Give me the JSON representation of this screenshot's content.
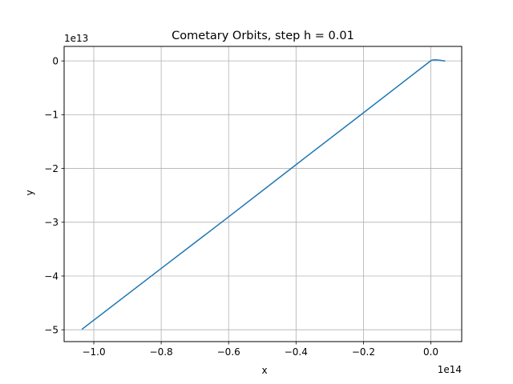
{
  "chart_data": {
    "type": "line",
    "title": "Cometary Orbits, step h = 0.01",
    "xlabel": "x",
    "ylabel": "y",
    "x_offset_text": "1e14",
    "y_offset_text": "1e13",
    "x_scale": 100000000000000.0,
    "y_scale": 10000000000000.0,
    "xlim": [
      -1.088,
      0.0915
    ],
    "ylim": [
      -5.22,
      0.27
    ],
    "x_ticks": [
      -1.0,
      -0.8,
      -0.6,
      -0.4,
      -0.2,
      0.0
    ],
    "x_tick_labels": [
      "−1.0",
      "−0.8",
      "−0.6",
      "−0.4",
      "−0.2",
      "0.0"
    ],
    "y_ticks": [
      0,
      -1,
      -2,
      -3,
      -4,
      -5
    ],
    "y_tick_labels": [
      "0",
      "−1",
      "−2",
      "−3",
      "−4",
      "−5"
    ],
    "grid": true,
    "series": [
      {
        "color": "#1f77b4",
        "x": [
          -1.034,
          -0.8,
          -0.6,
          -0.4,
          -0.2,
          -0.002,
          0.002,
          0.006,
          0.012,
          0.02,
          0.028,
          0.036,
          0.041
        ],
        "y": [
          -4.985,
          -3.86,
          -2.9,
          -1.93,
          -0.965,
          -0.005,
          0.012,
          0.018,
          0.02,
          0.018,
          0.012,
          0.004,
          -0.002
        ]
      }
    ]
  }
}
